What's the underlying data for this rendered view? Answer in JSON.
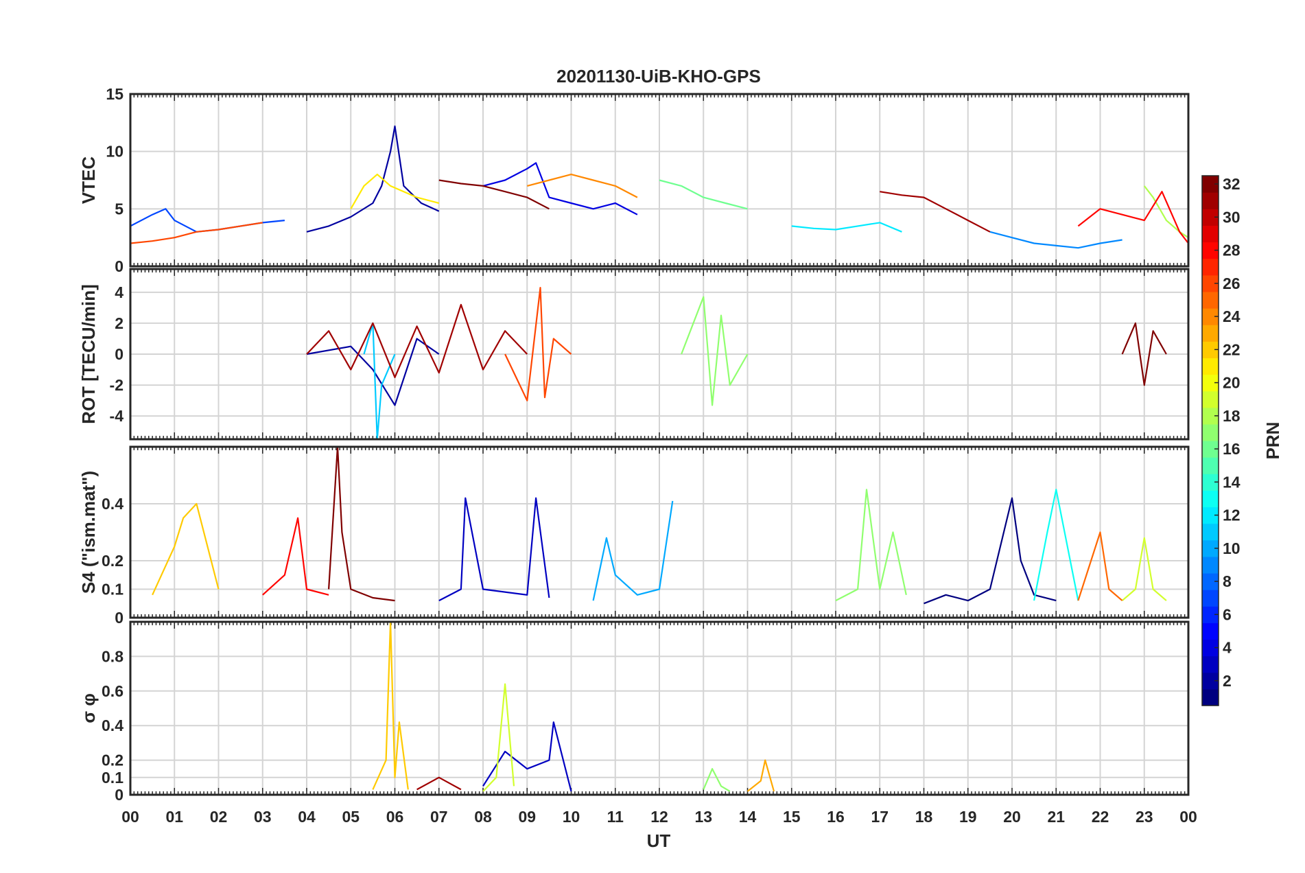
{
  "chart_data": {
    "type": "line",
    "title": "20201130-UiB-KHO-GPS",
    "xlabel": "UT",
    "x_ticklabels": [
      "00",
      "01",
      "02",
      "03",
      "04",
      "05",
      "06",
      "07",
      "08",
      "09",
      "10",
      "11",
      "12",
      "13",
      "14",
      "15",
      "16",
      "17",
      "18",
      "19",
      "20",
      "21",
      "22",
      "23",
      "00"
    ],
    "xlim_hours": [
      0,
      24
    ],
    "grid": true,
    "colorbar": {
      "label": "PRN",
      "range": [
        1,
        32
      ],
      "ticks": [
        2,
        4,
        6,
        8,
        10,
        12,
        14,
        16,
        18,
        20,
        22,
        24,
        26,
        28,
        30,
        32
      ],
      "colormap": "jet",
      "placement": "right"
    },
    "panels": [
      {
        "id": "vtec",
        "ylabel": "VTEC",
        "ylim": [
          0,
          15
        ],
        "yticks": [
          0,
          5,
          10,
          15
        ],
        "series": [
          {
            "prn": 2,
            "x": [
              4.0,
              4.5,
              5.0,
              5.5,
              5.7,
              5.9,
              6.0,
              6.2,
              6.6,
              7.0
            ],
            "y": [
              3.0,
              3.5,
              4.3,
              5.5,
              7.0,
              10.0,
              12.2,
              7.0,
              5.5,
              4.8
            ]
          },
          {
            "prn": 4,
            "x": [
              8.0,
              8.5,
              9.0,
              9.2,
              9.5,
              10.0,
              10.5,
              11.0,
              11.5
            ],
            "y": [
              7.0,
              7.5,
              8.5,
              9.0,
              6.0,
              5.5,
              5.0,
              5.5,
              4.5
            ]
          },
          {
            "prn": 7,
            "x": [
              0.0,
              0.5,
              0.8,
              1.0,
              1.5,
              2.0,
              2.5,
              3.0,
              3.5
            ],
            "y": [
              3.5,
              4.5,
              5.0,
              4.0,
              3.0,
              3.2,
              3.5,
              3.8,
              4.0
            ]
          },
          {
            "prn": 9,
            "x": [
              19.5,
              20.0,
              20.5,
              21.0,
              21.5,
              22.0,
              22.5
            ],
            "y": [
              3.0,
              2.5,
              2.0,
              1.8,
              1.6,
              2.0,
              2.3
            ]
          },
          {
            "prn": 12,
            "x": [
              15.0,
              15.5,
              16.0,
              16.5,
              17.0,
              17.5
            ],
            "y": [
              3.5,
              3.3,
              3.2,
              3.5,
              3.8,
              3.0
            ]
          },
          {
            "prn": 16,
            "x": [
              12.0,
              12.5,
              13.0,
              13.5,
              14.0
            ],
            "y": [
              7.5,
              7.0,
              6.0,
              5.5,
              5.0
            ]
          },
          {
            "prn": 18,
            "x": [
              23.0,
              23.2,
              23.5,
              23.8,
              24.0
            ],
            "y": [
              7.0,
              6.0,
              4.0,
              3.0,
              2.5
            ]
          },
          {
            "prn": 21,
            "x": [
              5.0,
              5.3,
              5.6,
              5.9,
              6.2,
              6.5,
              7.0
            ],
            "y": [
              5.0,
              7.0,
              8.0,
              7.0,
              6.5,
              6.0,
              5.5
            ]
          },
          {
            "prn": 24,
            "x": [
              9.0,
              9.5,
              10.0,
              10.5,
              11.0,
              11.5
            ],
            "y": [
              7.0,
              7.5,
              8.0,
              7.5,
              7.0,
              6.0
            ]
          },
          {
            "prn": 26,
            "x": [
              0.0,
              0.5,
              1.0,
              1.5,
              2.0,
              2.5,
              3.0
            ],
            "y": [
              2.0,
              2.2,
              2.5,
              3.0,
              3.2,
              3.5,
              3.8
            ]
          },
          {
            "prn": 28,
            "x": [
              21.5,
              22.0,
              22.5,
              23.0,
              23.4,
              23.8,
              24.0
            ],
            "y": [
              3.5,
              5.0,
              4.5,
              4.0,
              6.5,
              3.0,
              2.0
            ]
          },
          {
            "prn": 31,
            "x": [
              17.0,
              17.5,
              18.0,
              18.5,
              19.0,
              19.5
            ],
            "y": [
              6.5,
              6.2,
              6.0,
              5.0,
              4.0,
              3.0
            ]
          },
          {
            "prn": 32,
            "x": [
              7.0,
              7.5,
              8.0,
              8.5,
              9.0,
              9.5
            ],
            "y": [
              7.5,
              7.2,
              7.0,
              6.5,
              6.0,
              5.0
            ]
          }
        ]
      },
      {
        "id": "rot",
        "ylabel": "ROT [TECU/min]",
        "ylim": [
          -5.5,
          5.5
        ],
        "yticks": [
          -4,
          -2,
          0,
          2,
          4
        ],
        "series": [
          {
            "prn": 2,
            "x": [
              4.0,
              5.0,
              5.5,
              6.0,
              6.5,
              7.0
            ],
            "y": [
              0.0,
              0.5,
              -1.0,
              -3.3,
              1.0,
              0.0
            ]
          },
          {
            "prn": 11,
            "x": [
              5.3,
              5.5,
              5.6,
              5.7,
              6.0
            ],
            "y": [
              0.0,
              2.0,
              -5.5,
              -2.0,
              0.0
            ]
          },
          {
            "prn": 17,
            "x": [
              12.5,
              13.0,
              13.2,
              13.4,
              13.6,
              14.0
            ],
            "y": [
              0.0,
              3.7,
              -3.3,
              2.5,
              -2.0,
              0.0
            ]
          },
          {
            "prn": 26,
            "x": [
              8.5,
              9.0,
              9.3,
              9.4,
              9.6,
              10.0
            ],
            "y": [
              0.0,
              -3.0,
              4.3,
              -2.8,
              1.0,
              0.0
            ]
          },
          {
            "prn": 31,
            "x": [
              4.0,
              4.5,
              5.0,
              5.5,
              6.0,
              6.5,
              7.0,
              7.5,
              8.0,
              8.5,
              9.0
            ],
            "y": [
              0.0,
              1.5,
              -1.0,
              2.0,
              -1.5,
              1.8,
              -1.2,
              3.2,
              -1.0,
              1.5,
              0.0
            ]
          },
          {
            "prn": 32,
            "x": [
              22.5,
              22.8,
              23.0,
              23.2,
              23.5
            ],
            "y": [
              0.0,
              2.0,
              -2.0,
              1.5,
              0.0
            ]
          }
        ]
      },
      {
        "id": "s4",
        "ylabel": "S4 (\"ism.mat\")",
        "ylim": [
          0,
          0.6
        ],
        "yticks": [
          0,
          0.1,
          0.2,
          0.4
        ],
        "series": [
          {
            "prn": 1,
            "x": [
              18.0,
              18.5,
              19.0,
              19.5,
              20.0,
              20.2,
              20.5,
              21.0
            ],
            "y": [
              0.05,
              0.08,
              0.06,
              0.1,
              0.42,
              0.2,
              0.08,
              0.06
            ]
          },
          {
            "prn": 3,
            "x": [
              7.0,
              7.5,
              7.6,
              8.0,
              9.0,
              9.2,
              9.5
            ],
            "y": [
              0.06,
              0.1,
              0.42,
              0.1,
              0.08,
              0.42,
              0.07
            ]
          },
          {
            "prn": 10,
            "x": [
              10.5,
              10.8,
              11.0,
              11.5,
              12.0,
              12.3
            ],
            "y": [
              0.06,
              0.28,
              0.15,
              0.08,
              0.1,
              0.41
            ]
          },
          {
            "prn": 13,
            "x": [
              20.5,
              20.8,
              21.0,
              21.5
            ],
            "y": [
              0.06,
              0.3,
              0.45,
              0.06
            ]
          },
          {
            "prn": 17,
            "x": [
              16.0,
              16.5,
              16.7,
              17.0,
              17.3,
              17.6
            ],
            "y": [
              0.06,
              0.1,
              0.45,
              0.1,
              0.3,
              0.08
            ]
          },
          {
            "prn": 19,
            "x": [
              22.5,
              22.8,
              23.0,
              23.2,
              23.5
            ],
            "y": [
              0.06,
              0.1,
              0.28,
              0.1,
              0.06
            ]
          },
          {
            "prn": 22,
            "x": [
              0.5,
              1.0,
              1.2,
              1.5,
              2.0
            ],
            "y": [
              0.08,
              0.25,
              0.35,
              0.4,
              0.1
            ]
          },
          {
            "prn": 25,
            "x": [
              21.5,
              22.0,
              22.2,
              22.5
            ],
            "y": [
              0.06,
              0.3,
              0.1,
              0.06
            ]
          },
          {
            "prn": 28,
            "x": [
              3.0,
              3.5,
              3.8,
              4.0,
              4.5
            ],
            "y": [
              0.08,
              0.15,
              0.35,
              0.1,
              0.08
            ]
          },
          {
            "prn": 32,
            "x": [
              4.5,
              4.7,
              4.8,
              5.0,
              5.5,
              6.0
            ],
            "y": [
              0.1,
              0.6,
              0.3,
              0.1,
              0.07,
              0.06
            ]
          }
        ]
      },
      {
        "id": "sigma_phi",
        "ylabel": "σ φ",
        "ylim": [
          0,
          1.0
        ],
        "yticks": [
          0,
          0.1,
          0.2,
          0.4,
          0.6,
          0.8
        ],
        "series": [
          {
            "prn": 3,
            "x": [
              8.0,
              8.5,
              9.0,
              9.5,
              9.6,
              10.0
            ],
            "y": [
              0.05,
              0.25,
              0.15,
              0.2,
              0.42,
              0.02
            ]
          },
          {
            "prn": 17,
            "x": [
              13.0,
              13.2,
              13.4,
              13.6
            ],
            "y": [
              0.03,
              0.15,
              0.05,
              0.02
            ]
          },
          {
            "prn": 19,
            "x": [
              8.0,
              8.3,
              8.5,
              8.7
            ],
            "y": [
              0.02,
              0.1,
              0.64,
              0.05
            ]
          },
          {
            "prn": 22,
            "x": [
              5.5,
              5.8,
              5.9,
              6.0,
              6.1,
              6.3
            ],
            "y": [
              0.03,
              0.2,
              1.0,
              0.1,
              0.42,
              0.03
            ]
          },
          {
            "prn": 23,
            "x": [
              14.0,
              14.3,
              14.4,
              14.6
            ],
            "y": [
              0.02,
              0.08,
              0.2,
              0.02
            ]
          },
          {
            "prn": 31,
            "x": [
              6.5,
              7.0,
              7.5
            ],
            "y": [
              0.03,
              0.1,
              0.03
            ]
          }
        ]
      }
    ]
  }
}
